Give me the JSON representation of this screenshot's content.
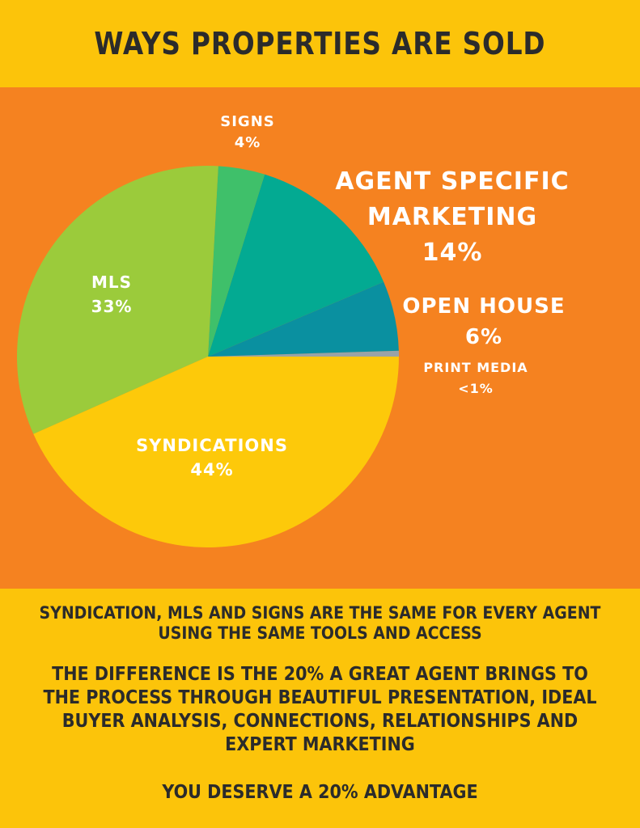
{
  "header": {
    "title": "WAYS PROPERTIES ARE SOLD"
  },
  "chart_data": {
    "type": "pie",
    "title": "WAYS PROPERTIES ARE SOLD",
    "start_angle_deg": 0,
    "direction": "counterclockwise",
    "slices": [
      {
        "name": "PRINT MEDIA",
        "value": 0.5,
        "label": "<1%",
        "color": "#9aa3a6"
      },
      {
        "name": "OPEN HOUSE",
        "value": 6,
        "label": "6%",
        "color": "#0a90a0"
      },
      {
        "name": "AGENT SPECIFIC MARKETING",
        "value": 14,
        "label": "14%",
        "color": "#03aa92"
      },
      {
        "name": "SIGNS",
        "value": 4,
        "label": "4%",
        "color": "#3fc06a"
      },
      {
        "name": "MLS",
        "value": 33,
        "label": "33%",
        "color": "#9bcb3b"
      },
      {
        "name": "SYNDICATIONS",
        "value": 44,
        "label": "44%",
        "color": "#fdc90a"
      }
    ]
  },
  "footer": {
    "line1": "SYNDICATION, MLS AND SIGNS ARE THE SAME FOR EVERY AGENT USING THE SAME TOOLS AND ACCESS",
    "line2": "THE DIFFERENCE IS THE 20% A GREAT AGENT BRINGS TO THE PROCESS THROUGH BEAUTIFUL PRESENTATION, IDEAL BUYER ANALYSIS, CONNECTIONS, RELATIONSHIPS AND EXPERT MARKETING",
    "line3": "YOU DESERVE A 20% ADVANTAGE"
  }
}
